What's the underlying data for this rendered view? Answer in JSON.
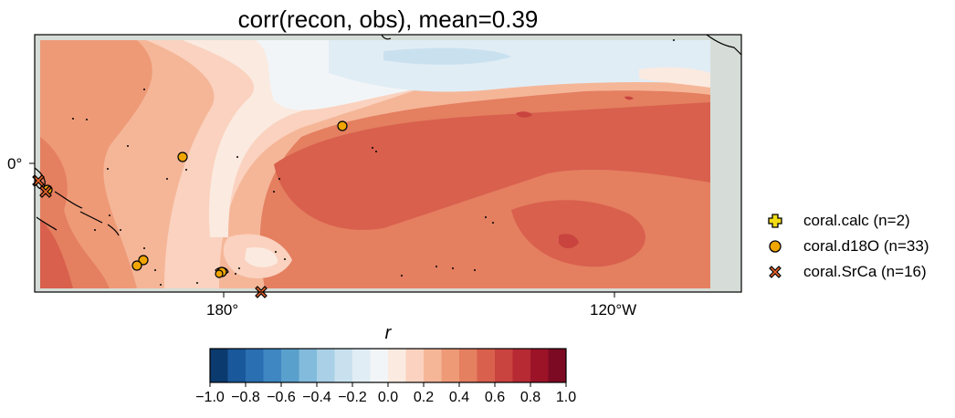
{
  "title": "corr(recon, obs), mean=0.39",
  "axes": {
    "x_ticks": [
      "180°",
      "120°W"
    ],
    "y_ticks": [
      "0°"
    ]
  },
  "colorbar": {
    "label": "r",
    "ticks": [
      "−1.0",
      "−0.8",
      "−0.6",
      "−0.4",
      "−0.2",
      "0.0",
      "0.2",
      "0.4",
      "0.6",
      "0.8",
      "1.0"
    ],
    "range": [
      -1.0,
      1.0
    ],
    "levels": 20,
    "colors": [
      "#0b3a6e",
      "#19589a",
      "#2a6fb1",
      "#3e87c2",
      "#5aa0cc",
      "#82bbdb",
      "#a9d0e6",
      "#c9e1ef",
      "#e1edf5",
      "#f2f5f7",
      "#fbeae0",
      "#fad2bf",
      "#f5b698",
      "#ee9a77",
      "#e47f60",
      "#d8604d",
      "#c9433f",
      "#b72a33",
      "#9c1328",
      "#7c0a22"
    ]
  },
  "legend": {
    "items": [
      {
        "label": "coral.calc (n=2)",
        "marker": "plus-marker",
        "color": "#f2dc14"
      },
      {
        "label": "coral.d18O (n=33)",
        "marker": "circle-marker",
        "color": "#f0a500"
      },
      {
        "label": "coral.SrCa (n=16)",
        "marker": "x-marker",
        "color": "#e8642c"
      }
    ]
  },
  "land_color": "#d6ddd8"
}
